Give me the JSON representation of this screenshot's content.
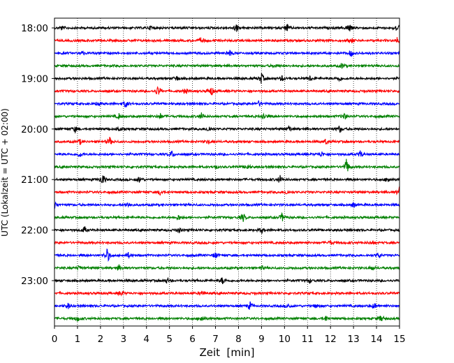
{
  "chart_data": {
    "type": "line",
    "subtype": "helicorder",
    "xlabel": "Zeit  [min]",
    "ylabel": "UTC (Lokalzeit = UTC + 02:00)",
    "xlim": [
      0,
      15
    ],
    "xticks": [
      0,
      1,
      2,
      3,
      4,
      5,
      6,
      7,
      8,
      9,
      10,
      11,
      12,
      13,
      14,
      15
    ],
    "grid": "vertical dotted",
    "ytick_labels": [
      "18:00",
      "19:00",
      "20:00",
      "21:00",
      "22:00",
      "23:00"
    ],
    "trace_interval_minutes": 15,
    "trace_count": 24,
    "color_cycle": [
      "#000000",
      "#ff0000",
      "#0000ff",
      "#008000"
    ],
    "traces": [
      {
        "start": "18:00",
        "events": [
          [
            0.3,
            3
          ],
          [
            4.2,
            3
          ],
          [
            7.9,
            6
          ],
          [
            10.1,
            6
          ],
          [
            12.8,
            7
          ],
          [
            14.9,
            7
          ]
        ]
      },
      {
        "start": "18:15",
        "events": [
          [
            6.4,
            5
          ],
          [
            12.9,
            4
          ],
          [
            14.9,
            4
          ]
        ]
      },
      {
        "start": "18:30",
        "events": [
          [
            1.2,
            3
          ],
          [
            7.6,
            5
          ],
          [
            12.9,
            5
          ]
        ]
      },
      {
        "start": "18:45",
        "events": [
          [
            9.6,
            3
          ],
          [
            12.5,
            4
          ]
        ]
      },
      {
        "start": "19:00",
        "events": [
          [
            5.3,
            4
          ],
          [
            9.0,
            8
          ],
          [
            9.9,
            4
          ],
          [
            11.1,
            4
          ],
          [
            12.4,
            4
          ]
        ]
      },
      {
        "start": "19:15",
        "events": [
          [
            4.5,
            8
          ],
          [
            5.7,
            4
          ],
          [
            6.8,
            8
          ]
        ]
      },
      {
        "start": "19:30",
        "events": [
          [
            1.9,
            4
          ],
          [
            3.1,
            6
          ],
          [
            8.9,
            4
          ]
        ]
      },
      {
        "start": "19:45",
        "events": [
          [
            2.8,
            4
          ],
          [
            4.6,
            4
          ],
          [
            6.4,
            5
          ],
          [
            9.1,
            6
          ],
          [
            12.6,
            5
          ]
        ]
      },
      {
        "start": "20:00",
        "events": [
          [
            0.9,
            4
          ],
          [
            2.8,
            4
          ],
          [
            6.7,
            5
          ],
          [
            10.2,
            5
          ],
          [
            12.4,
            5
          ]
        ]
      },
      {
        "start": "20:15",
        "events": [
          [
            1.1,
            4
          ],
          [
            2.4,
            6
          ],
          [
            6.7,
            3
          ],
          [
            11.8,
            4
          ]
        ]
      },
      {
        "start": "20:30",
        "events": [
          [
            1.1,
            4
          ],
          [
            5.1,
            5
          ],
          [
            11.6,
            4
          ],
          [
            13.3,
            5
          ]
        ]
      },
      {
        "start": "20:45",
        "events": [
          [
            7.0,
            3
          ],
          [
            8.4,
            4
          ],
          [
            12.7,
            12
          ]
        ]
      },
      {
        "start": "21:00",
        "events": [
          [
            2.1,
            9
          ],
          [
            3.7,
            5
          ],
          [
            9.8,
            6
          ],
          [
            14.5,
            5
          ]
        ]
      },
      {
        "start": "21:15",
        "events": [
          [
            4.6,
            4
          ],
          [
            10.1,
            4
          ],
          [
            15.0,
            7
          ]
        ]
      },
      {
        "start": "21:30",
        "events": [
          [
            0.0,
            7
          ],
          [
            3.2,
            4
          ],
          [
            13.0,
            4
          ]
        ]
      },
      {
        "start": "21:45",
        "events": [
          [
            5.4,
            4
          ],
          [
            8.2,
            6
          ],
          [
            9.9,
            6
          ]
        ]
      },
      {
        "start": "22:00",
        "events": [
          [
            1.3,
            5
          ],
          [
            5.4,
            4
          ],
          [
            9.0,
            4
          ]
        ]
      },
      {
        "start": "22:15",
        "events": [
          [
            12.0,
            3
          ],
          [
            13.8,
            3
          ]
        ]
      },
      {
        "start": "22:30",
        "events": [
          [
            2.3,
            11
          ],
          [
            3.2,
            4
          ],
          [
            7.0,
            5
          ],
          [
            14.1,
            4
          ]
        ]
      },
      {
        "start": "22:45",
        "events": [
          [
            1.1,
            4
          ],
          [
            2.8,
            4
          ],
          [
            9.0,
            3
          ],
          [
            13.8,
            3
          ]
        ]
      },
      {
        "start": "23:00",
        "events": [
          [
            4.9,
            4
          ],
          [
            7.3,
            5
          ],
          [
            11.1,
            3
          ]
        ]
      },
      {
        "start": "23:15",
        "events": [
          [
            2.9,
            4
          ],
          [
            6.4,
            4
          ]
        ]
      },
      {
        "start": "23:30",
        "events": [
          [
            0.6,
            4
          ],
          [
            8.5,
            6
          ],
          [
            10.2,
            4
          ],
          [
            11.4,
            4
          ],
          [
            13.9,
            4
          ]
        ]
      },
      {
        "start": "23:45",
        "events": [
          [
            1.0,
            4
          ],
          [
            6.4,
            5
          ],
          [
            11.8,
            4
          ],
          [
            14.2,
            5
          ]
        ]
      }
    ]
  }
}
